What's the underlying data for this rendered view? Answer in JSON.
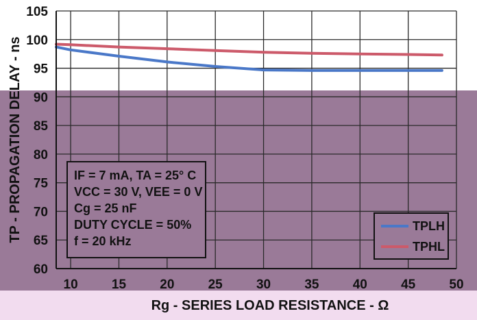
{
  "chart_data": {
    "type": "line",
    "xlabel": "Rg - SERIES LOAD RESISTANCE - Ω",
    "ylabel": "TP - PROPAGATION DELAY - ns",
    "xlim": [
      8.5,
      50
    ],
    "ylim": [
      60,
      105
    ],
    "x_ticks": [
      10,
      15,
      20,
      25,
      30,
      35,
      40,
      45,
      50
    ],
    "y_ticks": [
      60,
      65,
      70,
      75,
      80,
      85,
      90,
      95,
      100,
      105
    ],
    "grid": true,
    "legend_position": "bottom-right",
    "conditions": [
      "IF = 7 mA, TA = 25° C",
      "VCC = 30 V, VEE = 0 V",
      "Cg = 25 nF",
      "DUTY CYCLE = 50%",
      "f = 20 kHz"
    ],
    "series": [
      {
        "name": "TPLH",
        "color": "#4a78c8",
        "x": [
          8.5,
          10,
          15,
          20,
          25,
          30,
          35,
          40,
          45,
          48.5
        ],
        "y": [
          98.7,
          98.2,
          97.1,
          96.1,
          95.3,
          94.7,
          94.6,
          94.6,
          94.6,
          94.6
        ]
      },
      {
        "name": "TPHL",
        "color": "#cc5a6a",
        "x": [
          8.5,
          10,
          15,
          20,
          25,
          30,
          35,
          40,
          45,
          48.5
        ],
        "y": [
          99.2,
          99.1,
          98.7,
          98.4,
          98.1,
          97.8,
          97.6,
          97.5,
          97.4,
          97.3
        ]
      }
    ]
  },
  "colors": {
    "background_top": "#ffffff",
    "background_bottom": "#9a7a98",
    "grid": "#2a2a2a",
    "bottom_band": "#f2dcef"
  }
}
